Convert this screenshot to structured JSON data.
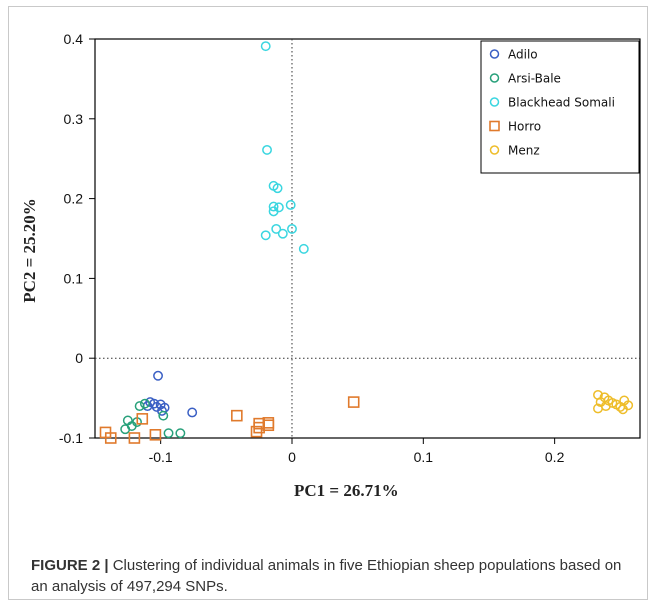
{
  "chart_data": {
    "type": "scatter",
    "xlabel": "PC1 = 26.71%",
    "ylabel": "PC2 = 25.20%",
    "xlim": [
      -0.15,
      0.265
    ],
    "ylim": [
      -0.1,
      0.4
    ],
    "xticks": [
      -0.1,
      0,
      0.1,
      0.2
    ],
    "xtick_labels": [
      "-0.1",
      "0",
      "0.1",
      "0.2"
    ],
    "yticks": [
      -0.1,
      0,
      0.1,
      0.2,
      0.3,
      0.4
    ],
    "ytick_labels": [
      "-0.1",
      "0",
      "0.1",
      "0.2",
      "0.3",
      "0.4"
    ],
    "reference_lines": {
      "x": 0,
      "y": 0,
      "style": "dotted"
    },
    "grid": false,
    "legend_position": "top-right",
    "series": [
      {
        "name": "Adilo",
        "marker": "circle",
        "color": "#3a5fc4",
        "points": [
          [
            -0.102,
            -0.022
          ],
          [
            -0.108,
            -0.055
          ],
          [
            -0.105,
            -0.057
          ],
          [
            -0.1,
            -0.058
          ],
          [
            -0.11,
            -0.06
          ],
          [
            -0.103,
            -0.061
          ],
          [
            -0.097,
            -0.062
          ],
          [
            -0.099,
            -0.066
          ],
          [
            -0.076,
            -0.068
          ]
        ]
      },
      {
        "name": "Arsi-Bale",
        "marker": "circle",
        "color": "#27a07a",
        "points": [
          [
            -0.112,
            -0.057
          ],
          [
            -0.116,
            -0.06
          ],
          [
            -0.098,
            -0.072
          ],
          [
            -0.125,
            -0.078
          ],
          [
            -0.118,
            -0.08
          ],
          [
            -0.122,
            -0.085
          ],
          [
            -0.127,
            -0.089
          ],
          [
            -0.094,
            -0.094
          ],
          [
            -0.085,
            -0.094
          ]
        ]
      },
      {
        "name": "Blackhead Somali",
        "marker": "circle",
        "color": "#3ad6e0",
        "points": [
          [
            -0.02,
            0.391
          ],
          [
            -0.019,
            0.261
          ],
          [
            -0.014,
            0.216
          ],
          [
            -0.011,
            0.213
          ],
          [
            -0.001,
            0.192
          ],
          [
            -0.014,
            0.19
          ],
          [
            -0.01,
            0.189
          ],
          [
            -0.014,
            0.184
          ],
          [
            0.0,
            0.162
          ],
          [
            -0.012,
            0.162
          ],
          [
            -0.007,
            0.156
          ],
          [
            -0.02,
            0.154
          ],
          [
            0.009,
            0.137
          ]
        ]
      },
      {
        "name": "Horro",
        "marker": "square",
        "color": "#e07a2c",
        "points": [
          [
            0.047,
            -0.055
          ],
          [
            -0.042,
            -0.072
          ],
          [
            -0.114,
            -0.076
          ],
          [
            -0.018,
            -0.081
          ],
          [
            -0.025,
            -0.082
          ],
          [
            -0.018,
            -0.084
          ],
          [
            -0.025,
            -0.087
          ],
          [
            -0.027,
            -0.092
          ],
          [
            -0.142,
            -0.093
          ],
          [
            -0.104,
            -0.096
          ],
          [
            -0.138,
            -0.1
          ],
          [
            -0.12,
            -0.1
          ]
        ]
      },
      {
        "name": "Menz",
        "marker": "circle",
        "color": "#eebd2a",
        "points": [
          [
            0.233,
            -0.046
          ],
          [
            0.238,
            -0.049
          ],
          [
            0.241,
            -0.053
          ],
          [
            0.253,
            -0.053
          ],
          [
            0.235,
            -0.055
          ],
          [
            0.244,
            -0.056
          ],
          [
            0.247,
            -0.058
          ],
          [
            0.256,
            -0.059
          ],
          [
            0.239,
            -0.06
          ],
          [
            0.25,
            -0.061
          ],
          [
            0.233,
            -0.063
          ],
          [
            0.252,
            -0.064
          ]
        ]
      }
    ]
  },
  "caption": {
    "label": "FIGURE 2 |",
    "text": " Clustering of individual animals in five Ethiopian sheep populations based on an analysis of 497,294 SNPs."
  }
}
